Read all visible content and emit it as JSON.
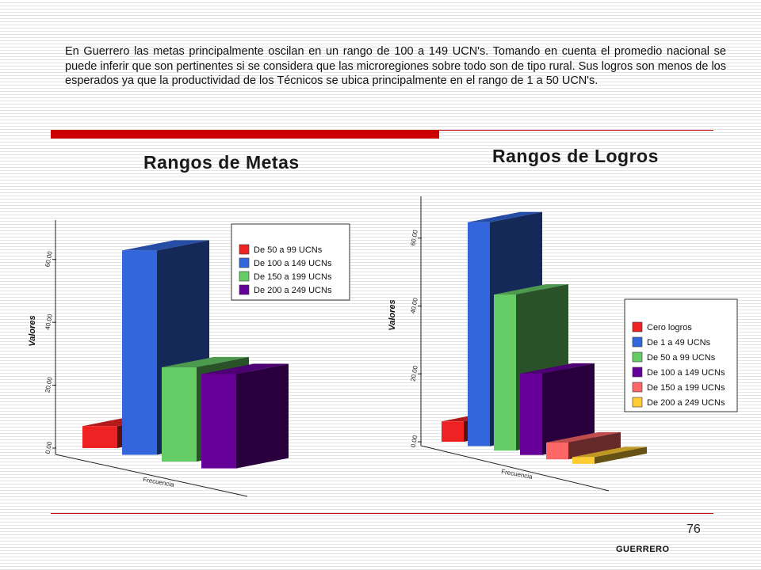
{
  "paragraph": "En Guerrero las metas principalmente oscilan en un rango de 100 a 149 UCN's. Tomando en cuenta el promedio nacional se puede inferir que  son pertinentes si se considera que las microregiones sobre todo son de tipo rural. Sus logros son menos de los esperados ya que la productividad de los Técnicos se ubica principalmente en el rango de 1 a 50 UCN's.",
  "page_number": "76",
  "footer_label": "GUERRERO",
  "colors": {
    "divider": "#cc0000"
  },
  "chart_data": [
    {
      "type": "bar",
      "title": "Rangos de Metas",
      "xlabel": "Frecuencia",
      "ylabel": "Valores",
      "categories": [
        "Frecuencia"
      ],
      "ylim": [
        0,
        70
      ],
      "yticks": [
        "0.00",
        "20.00",
        "40.00",
        "60.00"
      ],
      "legend_position": "top-right",
      "series": [
        {
          "name": "De 50 a 99 UCNs",
          "values": [
            7
          ],
          "color": "#ee2222"
        },
        {
          "name": "De 100 a 149 UCNs",
          "values": [
            65
          ],
          "color": "#3366dd"
        },
        {
          "name": "De 150 a 199 UCNs",
          "values": [
            30
          ],
          "color": "#66cc66"
        },
        {
          "name": "De 200 a 249 UCNs",
          "values": [
            30
          ],
          "color": "#660099"
        }
      ]
    },
    {
      "type": "bar",
      "title": "Rangos de Logros",
      "xlabel": "Frecuencia",
      "ylabel": "Valores",
      "categories": [
        "Frecuencia"
      ],
      "ylim": [
        0,
        70
      ],
      "yticks": [
        "0.00",
        "20.00",
        "40.00",
        "60.00"
      ],
      "legend_position": "right",
      "series": [
        {
          "name": "Cero logros",
          "values": [
            6
          ],
          "color": "#ee2222"
        },
        {
          "name": "De 1 a 49 UCNs",
          "values": [
            66
          ],
          "color": "#3366dd"
        },
        {
          "name": "De 50 a 99 UCNs",
          "values": [
            46
          ],
          "color": "#66cc66"
        },
        {
          "name": "De 100 a 149 UCNs",
          "values": [
            24
          ],
          "color": "#660099"
        },
        {
          "name": "De 150 a 199 UCNs",
          "values": [
            5
          ],
          "color": "#ff6666"
        },
        {
          "name": "De 200 a 249 UCNs",
          "values": [
            2
          ],
          "color": "#ffcc33"
        }
      ]
    }
  ]
}
